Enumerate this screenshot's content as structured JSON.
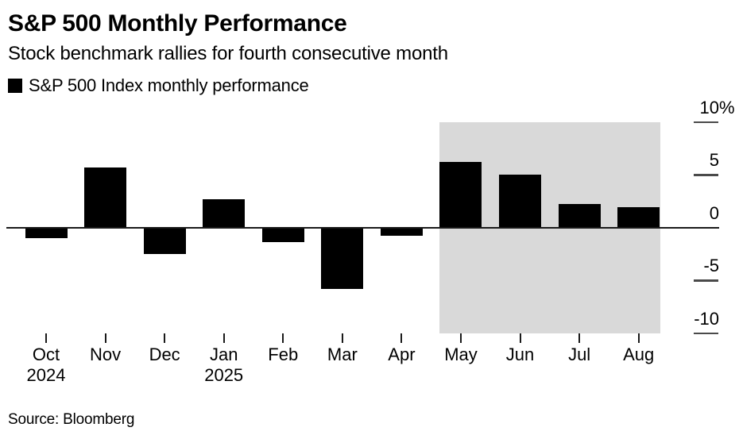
{
  "chart_data": {
    "type": "bar",
    "title": "S&P 500 Monthly Performance",
    "subtitle": "Stock benchmark rallies for fourth consecutive month",
    "legend": "S&P 500 Index monthly performance",
    "categories": [
      "Oct",
      "Nov",
      "Dec",
      "Jan",
      "Feb",
      "Mar",
      "Apr",
      "May",
      "Jun",
      "Jul",
      "Aug"
    ],
    "values": [
      -1.0,
      5.7,
      -2.5,
      2.7,
      -1.4,
      -5.8,
      -0.8,
      6.2,
      5.0,
      2.2,
      1.9
    ],
    "year_labels": [
      {
        "month_index": 0,
        "label": "2024"
      },
      {
        "month_index": 3,
        "label": "2025"
      }
    ],
    "ylabel": "",
    "xlabel": "",
    "ylim": [
      -10,
      10
    ],
    "yticks": [
      10,
      5,
      0,
      -5,
      -10
    ],
    "ytick_labels": [
      "10",
      "5",
      "0",
      "-5",
      "-10"
    ],
    "y_unit": "%",
    "grid": "off",
    "legend_position": "top-left",
    "highlight_region": {
      "from": "May",
      "to": "Aug",
      "color": "#d9d9d9"
    },
    "bar_color": "#000000",
    "axis_line_color": "#1a1a1a",
    "ytick_color": "#4a4a4a",
    "source": "Source: Bloomberg"
  }
}
